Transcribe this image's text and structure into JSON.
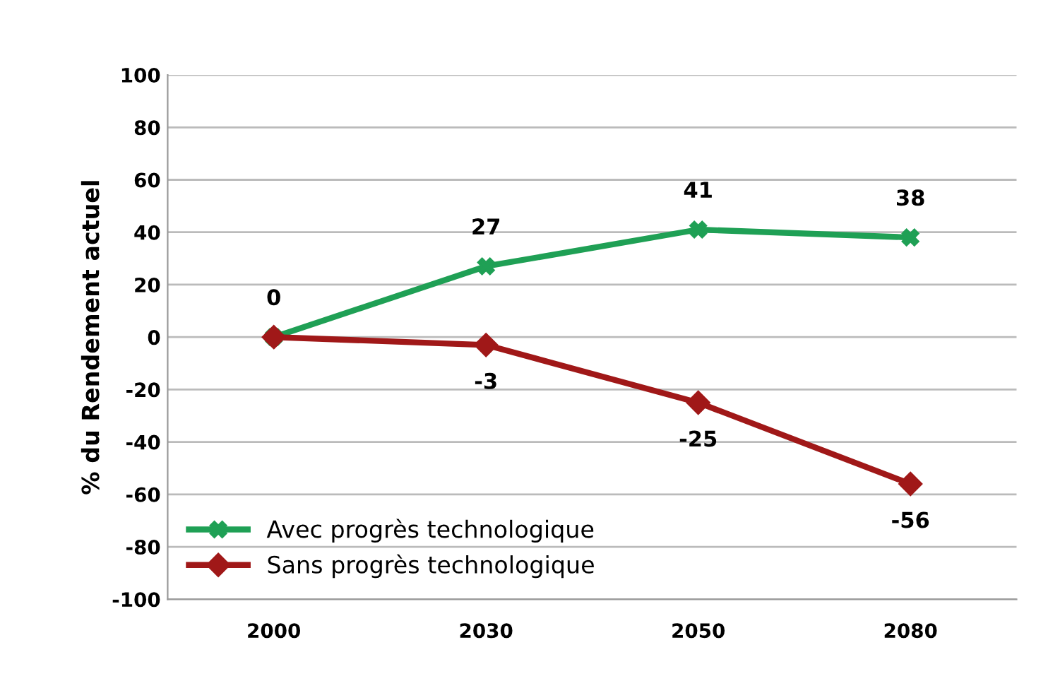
{
  "chart_data": {
    "type": "line",
    "ylabel": "% du Rendement actuel",
    "categories": [
      "2000",
      "2030",
      "2050",
      "2080"
    ],
    "series": [
      {
        "name": "Avec progrès technologique",
        "color": "#1fa055",
        "marker": "cross",
        "values": [
          0,
          27,
          41,
          38
        ],
        "value_labels": [
          "0",
          "27",
          "41",
          "38"
        ]
      },
      {
        "name": "Sans progrès technologique",
        "color": "#a01818",
        "marker": "diamond",
        "values": [
          0,
          -3,
          -25,
          -56
        ],
        "value_labels": [
          null,
          "-3",
          "-25",
          "-56"
        ]
      }
    ],
    "ylim": [
      -100,
      100
    ],
    "yticks": [
      -100,
      -80,
      -60,
      -40,
      -20,
      0,
      20,
      40,
      60,
      80,
      100
    ],
    "grid": "y",
    "legend": "bottom left"
  }
}
